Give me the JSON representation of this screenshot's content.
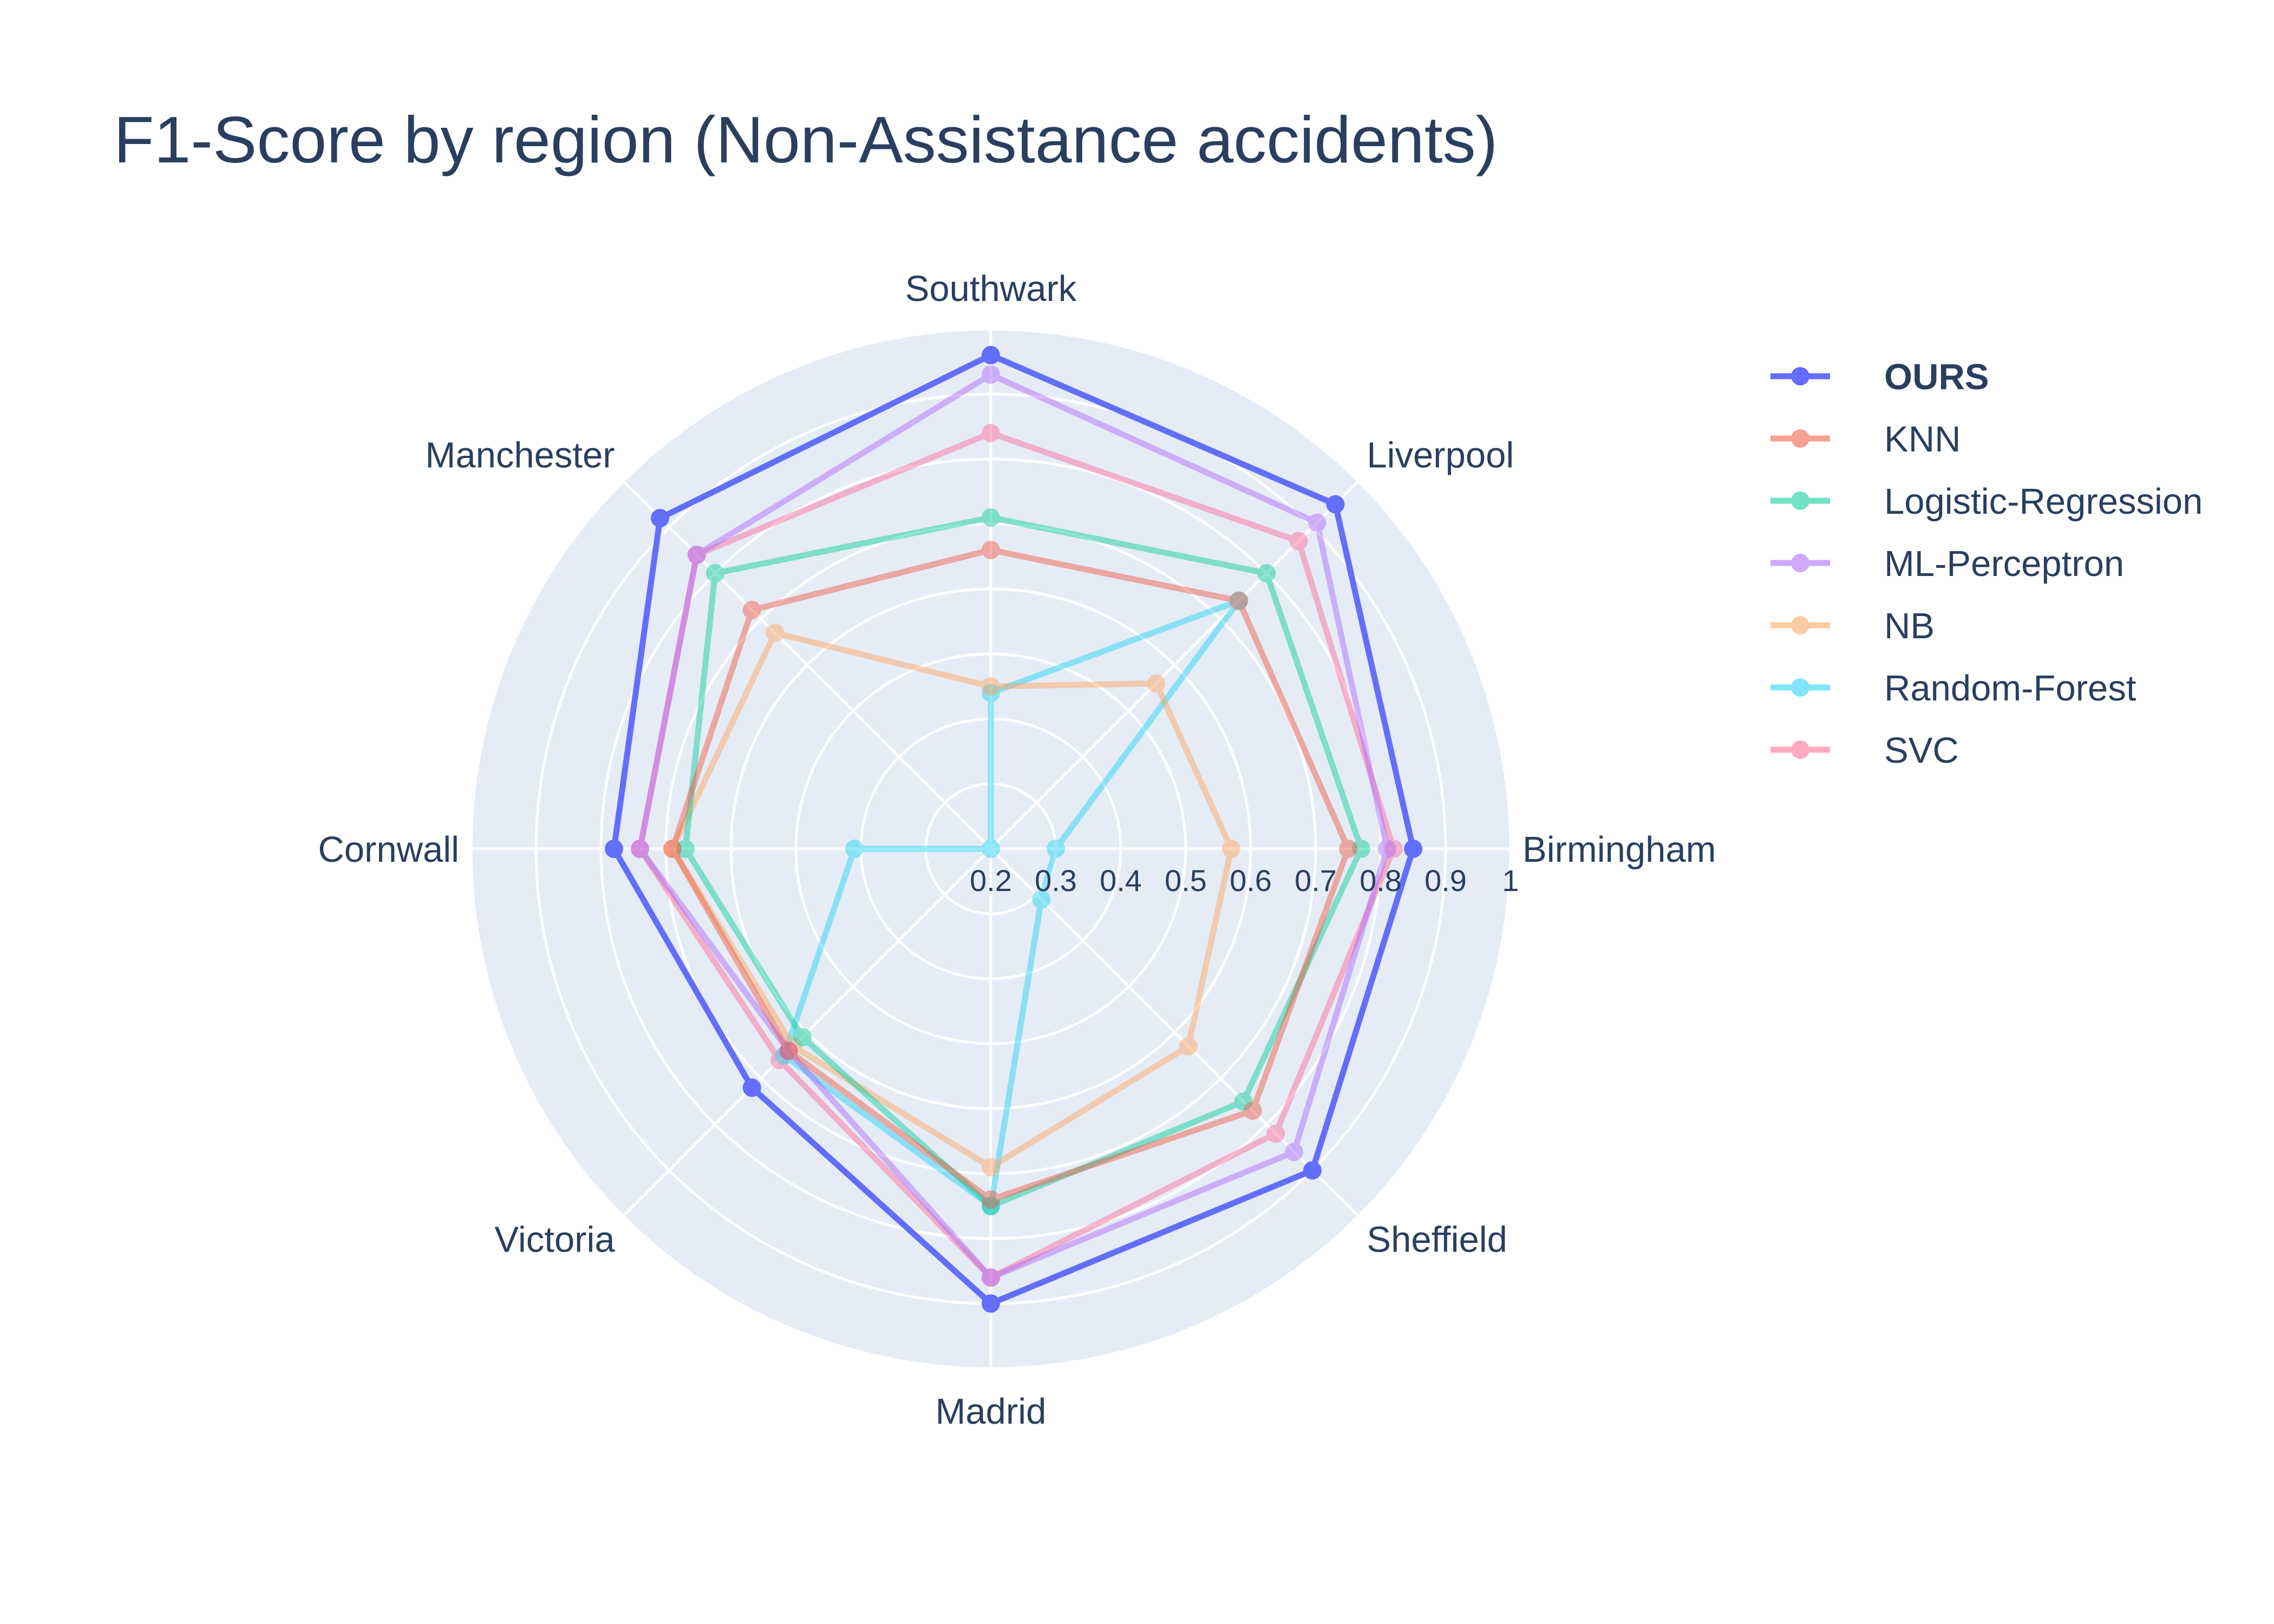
{
  "chart_data": {
    "type": "radar",
    "title": "F1-Score by region (Non-Assistance accidents)",
    "categories": [
      "Birmingham",
      "Liverpool",
      "Southwark",
      "Manchester",
      "Cornwall",
      "Victoria",
      "Madrid",
      "Sheffield"
    ],
    "radial_ticks": [
      "0.2",
      "0.3",
      "0.4",
      "0.5",
      "0.6",
      "0.7",
      "0.8",
      "0.9",
      "1"
    ],
    "radial_range": [
      0.2,
      1.0
    ],
    "series": [
      {
        "name": "OURS",
        "color": "#636efa",
        "opacity": 1.0,
        "bold": true,
        "values": [
          0.85,
          0.95,
          0.96,
          0.92,
          0.78,
          0.72,
          0.9,
          0.9
        ]
      },
      {
        "name": "KNN",
        "color": "#ef553b",
        "opacity": 0.45,
        "bold": false,
        "values": [
          0.75,
          0.74,
          0.66,
          0.72,
          0.69,
          0.64,
          0.74,
          0.77
        ]
      },
      {
        "name": "Logistic-Regression",
        "color": "#00cc96",
        "opacity": 0.45,
        "bold": false,
        "values": [
          0.77,
          0.8,
          0.71,
          0.8,
          0.67,
          0.61,
          0.75,
          0.75
        ]
      },
      {
        "name": "ML-Perceptron",
        "color": "#ab63fa",
        "opacity": 0.45,
        "bold": false,
        "values": [
          0.81,
          0.91,
          0.93,
          0.84,
          0.74,
          0.64,
          0.86,
          0.86
        ]
      },
      {
        "name": "NB",
        "color": "#ffa15a",
        "opacity": 0.45,
        "bold": false,
        "values": [
          0.57,
          0.56,
          0.45,
          0.67,
          0.69,
          0.63,
          0.69,
          0.63
        ]
      },
      {
        "name": "Random-Forest",
        "color": "#19d3f3",
        "opacity": 0.45,
        "bold": false,
        "values": [
          0.3,
          0.74,
          0.44,
          0.2,
          0.41,
          0.65,
          0.75,
          0.31
        ]
      },
      {
        "name": "SVC",
        "color": "#ff6692",
        "opacity": 0.45,
        "bold": false,
        "values": [
          0.82,
          0.87,
          0.84,
          0.84,
          0.74,
          0.66,
          0.86,
          0.82
        ]
      }
    ],
    "legend_position": "top-right",
    "grid": true
  }
}
